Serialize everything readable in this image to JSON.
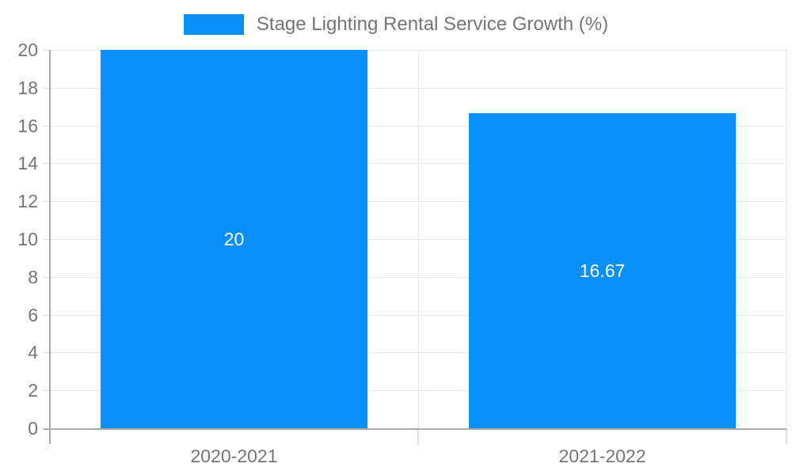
{
  "chart_data": {
    "type": "bar",
    "title": "Stage Lighting Rental Service Growth (%)",
    "legend": [
      "Stage Lighting Rental Service Growth (%)"
    ],
    "legend_position": "top-center",
    "categories": [
      "2020-2021",
      "2021-2022"
    ],
    "series": [
      {
        "name": "Stage Lighting Rental Service Growth (%)",
        "values": [
          20,
          16.67
        ]
      }
    ],
    "value_labels": [
      "20",
      "16.67"
    ],
    "xlabel": "",
    "ylabel": "",
    "ylim": [
      0,
      20
    ],
    "yticks": [
      "0",
      "2",
      "4",
      "6",
      "8",
      "10",
      "12",
      "14",
      "16",
      "18",
      "20"
    ],
    "grid": true,
    "colors": {
      "bar": "#0990f8",
      "grid": "#e6e6e6",
      "axis": "#a9a9a9",
      "tick": "#e0e0e0",
      "text": "#757575",
      "bar_label": "#ffffff",
      "background": "#ffffff"
    }
  }
}
